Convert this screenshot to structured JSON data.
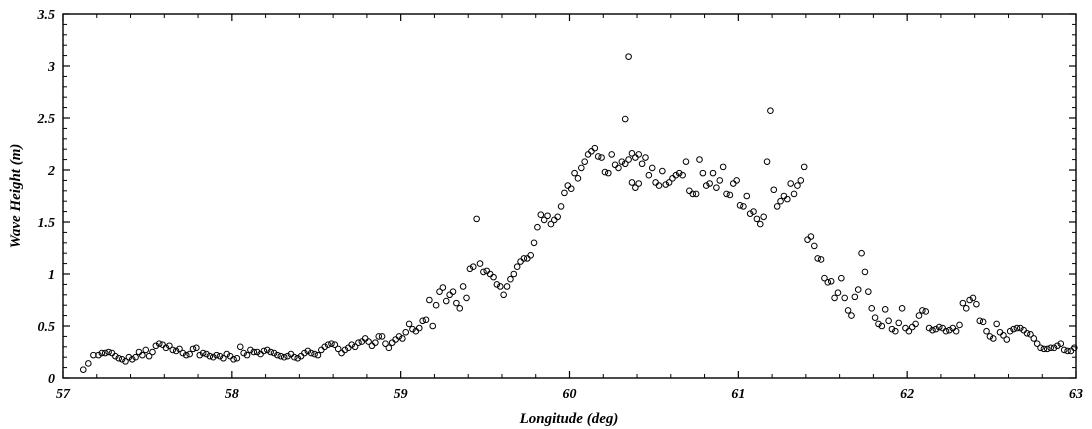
{
  "chart_data": {
    "type": "scatter",
    "xlabel": "Longitude (deg)",
    "ylabel": "Wave Height (m)",
    "xlim": [
      57,
      63
    ],
    "ylim": [
      0,
      3.5
    ],
    "x_ticks": [
      57,
      58,
      59,
      60,
      61,
      62,
      63
    ],
    "y_ticks": [
      0,
      0.5,
      1,
      1.5,
      2,
      2.5,
      3,
      3.5
    ],
    "x_tick_labels": [
      "57",
      "58",
      "59",
      "60",
      "61",
      "62",
      "63"
    ],
    "y_tick_labels": [
      "0",
      "0.5",
      "1",
      "1.5",
      "2",
      "2.5",
      "3",
      "3.5"
    ],
    "marker": "open-circle",
    "marker_color": "#000000",
    "grid": false,
    "series": [
      {
        "points": [
          [
            57.12,
            0.08
          ],
          [
            57.15,
            0.14
          ],
          [
            57.18,
            0.22
          ],
          [
            57.21,
            0.22
          ],
          [
            57.23,
            0.24
          ],
          [
            57.25,
            0.24
          ],
          [
            57.27,
            0.25
          ],
          [
            57.29,
            0.24
          ],
          [
            57.31,
            0.21
          ],
          [
            57.33,
            0.19
          ],
          [
            57.35,
            0.18
          ],
          [
            57.37,
            0.16
          ],
          [
            57.39,
            0.2
          ],
          [
            57.41,
            0.18
          ],
          [
            57.43,
            0.2
          ],
          [
            57.45,
            0.25
          ],
          [
            57.47,
            0.22
          ],
          [
            57.49,
            0.27
          ],
          [
            57.51,
            0.21
          ],
          [
            57.53,
            0.25
          ],
          [
            57.55,
            0.31
          ],
          [
            57.57,
            0.33
          ],
          [
            57.59,
            0.32
          ],
          [
            57.61,
            0.29
          ],
          [
            57.63,
            0.31
          ],
          [
            57.65,
            0.27
          ],
          [
            57.67,
            0.26
          ],
          [
            57.69,
            0.28
          ],
          [
            57.71,
            0.24
          ],
          [
            57.73,
            0.22
          ],
          [
            57.75,
            0.23
          ],
          [
            57.77,
            0.28
          ],
          [
            57.79,
            0.29
          ],
          [
            57.81,
            0.22
          ],
          [
            57.83,
            0.24
          ],
          [
            57.85,
            0.23
          ],
          [
            57.87,
            0.21
          ],
          [
            57.89,
            0.2
          ],
          [
            57.91,
            0.22
          ],
          [
            57.93,
            0.21
          ],
          [
            57.95,
            0.19
          ],
          [
            57.97,
            0.23
          ],
          [
            57.99,
            0.21
          ],
          [
            58.01,
            0.18
          ],
          [
            58.03,
            0.19
          ],
          [
            58.05,
            0.3
          ],
          [
            58.07,
            0.24
          ],
          [
            58.09,
            0.22
          ],
          [
            58.11,
            0.27
          ],
          [
            58.13,
            0.25
          ],
          [
            58.15,
            0.25
          ],
          [
            58.17,
            0.23
          ],
          [
            58.19,
            0.26
          ],
          [
            58.21,
            0.27
          ],
          [
            58.23,
            0.25
          ],
          [
            58.25,
            0.24
          ],
          [
            58.27,
            0.22
          ],
          [
            58.29,
            0.21
          ],
          [
            58.31,
            0.2
          ],
          [
            58.33,
            0.21
          ],
          [
            58.35,
            0.23
          ],
          [
            58.37,
            0.2
          ],
          [
            58.39,
            0.19
          ],
          [
            58.41,
            0.21
          ],
          [
            58.43,
            0.24
          ],
          [
            58.45,
            0.26
          ],
          [
            58.47,
            0.24
          ],
          [
            58.49,
            0.23
          ],
          [
            58.51,
            0.22
          ],
          [
            58.53,
            0.27
          ],
          [
            58.55,
            0.3
          ],
          [
            58.57,
            0.32
          ],
          [
            58.59,
            0.33
          ],
          [
            58.61,
            0.32
          ],
          [
            58.63,
            0.28
          ],
          [
            58.65,
            0.24
          ],
          [
            58.67,
            0.27
          ],
          [
            58.69,
            0.29
          ],
          [
            58.71,
            0.32
          ],
          [
            58.73,
            0.3
          ],
          [
            58.75,
            0.34
          ],
          [
            58.77,
            0.35
          ],
          [
            58.79,
            0.38
          ],
          [
            58.81,
            0.35
          ],
          [
            58.83,
            0.31
          ],
          [
            58.85,
            0.34
          ],
          [
            58.87,
            0.4
          ],
          [
            58.89,
            0.4
          ],
          [
            58.91,
            0.33
          ],
          [
            58.93,
            0.29
          ],
          [
            58.95,
            0.34
          ],
          [
            58.97,
            0.37
          ],
          [
            58.99,
            0.4
          ],
          [
            59.01,
            0.38
          ],
          [
            59.03,
            0.44
          ],
          [
            59.05,
            0.52
          ],
          [
            59.07,
            0.47
          ],
          [
            59.09,
            0.45
          ],
          [
            59.11,
            0.48
          ],
          [
            59.13,
            0.55
          ],
          [
            59.15,
            0.56
          ],
          [
            59.17,
            0.75
          ],
          [
            59.19,
            0.5
          ],
          [
            59.21,
            0.7
          ],
          [
            59.23,
            0.83
          ],
          [
            59.25,
            0.87
          ],
          [
            59.27,
            0.74
          ],
          [
            59.29,
            0.8
          ],
          [
            59.31,
            0.83
          ],
          [
            59.33,
            0.72
          ],
          [
            59.35,
            0.67
          ],
          [
            59.37,
            0.88
          ],
          [
            59.39,
            0.77
          ],
          [
            59.41,
            1.05
          ],
          [
            59.43,
            1.07
          ],
          [
            59.45,
            1.53
          ],
          [
            59.47,
            1.1
          ],
          [
            59.49,
            1.02
          ],
          [
            59.51,
            1.03
          ],
          [
            59.53,
            1.0
          ],
          [
            59.55,
            0.97
          ],
          [
            59.57,
            0.9
          ],
          [
            59.59,
            0.88
          ],
          [
            59.61,
            0.8
          ],
          [
            59.63,
            0.88
          ],
          [
            59.65,
            0.95
          ],
          [
            59.67,
            1.0
          ],
          [
            59.69,
            1.07
          ],
          [
            59.71,
            1.12
          ],
          [
            59.73,
            1.15
          ],
          [
            59.75,
            1.15
          ],
          [
            59.77,
            1.18
          ],
          [
            59.79,
            1.3
          ],
          [
            59.81,
            1.45
          ],
          [
            59.83,
            1.57
          ],
          [
            59.85,
            1.52
          ],
          [
            59.87,
            1.56
          ],
          [
            59.89,
            1.48
          ],
          [
            59.91,
            1.52
          ],
          [
            59.93,
            1.55
          ],
          [
            59.95,
            1.65
          ],
          [
            59.97,
            1.78
          ],
          [
            59.99,
            1.85
          ],
          [
            60.01,
            1.82
          ],
          [
            60.03,
            1.97
          ],
          [
            60.05,
            1.92
          ],
          [
            60.07,
            2.02
          ],
          [
            60.09,
            2.08
          ],
          [
            60.11,
            2.15
          ],
          [
            60.13,
            2.18
          ],
          [
            60.15,
            2.21
          ],
          [
            60.17,
            2.13
          ],
          [
            60.19,
            2.12
          ],
          [
            60.21,
            1.98
          ],
          [
            60.23,
            1.97
          ],
          [
            60.25,
            2.15
          ],
          [
            60.27,
            2.05
          ],
          [
            60.29,
            2.02
          ],
          [
            60.31,
            2.08
          ],
          [
            60.33,
            2.06
          ],
          [
            60.35,
            2.1
          ],
          [
            60.37,
            2.16
          ],
          [
            60.39,
            2.12
          ],
          [
            60.41,
            2.15
          ],
          [
            60.33,
            2.49
          ],
          [
            60.35,
            3.09
          ],
          [
            60.37,
            1.88
          ],
          [
            60.39,
            1.83
          ],
          [
            60.41,
            1.87
          ],
          [
            60.43,
            2.06
          ],
          [
            60.45,
            2.12
          ],
          [
            60.47,
            1.95
          ],
          [
            60.49,
            2.02
          ],
          [
            60.51,
            1.88
          ],
          [
            60.53,
            1.85
          ],
          [
            60.55,
            1.99
          ],
          [
            60.57,
            1.86
          ],
          [
            60.59,
            1.88
          ],
          [
            60.61,
            1.92
          ],
          [
            60.63,
            1.95
          ],
          [
            60.65,
            1.97
          ],
          [
            60.67,
            1.95
          ],
          [
            60.69,
            2.08
          ],
          [
            60.71,
            1.8
          ],
          [
            60.73,
            1.77
          ],
          [
            60.75,
            1.77
          ],
          [
            60.77,
            2.1
          ],
          [
            60.79,
            1.97
          ],
          [
            60.81,
            1.85
          ],
          [
            60.83,
            1.87
          ],
          [
            60.85,
            1.97
          ],
          [
            60.87,
            1.83
          ],
          [
            60.89,
            1.9
          ],
          [
            60.91,
            2.03
          ],
          [
            60.93,
            1.77
          ],
          [
            60.95,
            1.76
          ],
          [
            60.97,
            1.87
          ],
          [
            60.99,
            1.9
          ],
          [
            61.01,
            1.66
          ],
          [
            61.03,
            1.65
          ],
          [
            61.05,
            1.75
          ],
          [
            61.07,
            1.58
          ],
          [
            61.09,
            1.6
          ],
          [
            61.11,
            1.53
          ],
          [
            61.13,
            1.48
          ],
          [
            61.15,
            1.55
          ],
          [
            61.17,
            2.08
          ],
          [
            61.19,
            2.57
          ],
          [
            61.21,
            1.81
          ],
          [
            61.23,
            1.65
          ],
          [
            61.25,
            1.7
          ],
          [
            61.27,
            1.75
          ],
          [
            61.29,
            1.72
          ],
          [
            61.31,
            1.87
          ],
          [
            61.33,
            1.77
          ],
          [
            61.35,
            1.85
          ],
          [
            61.37,
            1.9
          ],
          [
            61.39,
            2.03
          ],
          [
            61.41,
            1.33
          ],
          [
            61.43,
            1.36
          ],
          [
            61.45,
            1.27
          ],
          [
            61.47,
            1.15
          ],
          [
            61.49,
            1.14
          ],
          [
            61.51,
            0.96
          ],
          [
            61.53,
            0.92
          ],
          [
            61.55,
            0.93
          ],
          [
            61.57,
            0.77
          ],
          [
            61.59,
            0.82
          ],
          [
            61.61,
            0.96
          ],
          [
            61.63,
            0.77
          ],
          [
            61.65,
            0.65
          ],
          [
            61.67,
            0.6
          ],
          [
            61.69,
            0.78
          ],
          [
            61.71,
            0.85
          ],
          [
            61.73,
            1.2
          ],
          [
            61.75,
            1.02
          ],
          [
            61.77,
            0.83
          ],
          [
            61.79,
            0.67
          ],
          [
            61.81,
            0.58
          ],
          [
            61.83,
            0.52
          ],
          [
            61.85,
            0.5
          ],
          [
            61.87,
            0.66
          ],
          [
            61.89,
            0.55
          ],
          [
            61.91,
            0.47
          ],
          [
            61.93,
            0.45
          ],
          [
            61.95,
            0.53
          ],
          [
            61.97,
            0.67
          ],
          [
            61.99,
            0.48
          ],
          [
            62.01,
            0.45
          ],
          [
            62.03,
            0.49
          ],
          [
            62.05,
            0.52
          ],
          [
            62.07,
            0.6
          ],
          [
            62.09,
            0.65
          ],
          [
            62.11,
            0.64
          ],
          [
            62.13,
            0.48
          ],
          [
            62.15,
            0.46
          ],
          [
            62.17,
            0.47
          ],
          [
            62.19,
            0.49
          ],
          [
            62.21,
            0.48
          ],
          [
            62.23,
            0.45
          ],
          [
            62.25,
            0.46
          ],
          [
            62.27,
            0.48
          ],
          [
            62.29,
            0.45
          ],
          [
            62.31,
            0.51
          ],
          [
            62.33,
            0.72
          ],
          [
            62.35,
            0.67
          ],
          [
            62.37,
            0.75
          ],
          [
            62.39,
            0.77
          ],
          [
            62.41,
            0.71
          ],
          [
            62.43,
            0.55
          ],
          [
            62.45,
            0.54
          ],
          [
            62.47,
            0.45
          ],
          [
            62.49,
            0.4
          ],
          [
            62.51,
            0.38
          ],
          [
            62.53,
            0.52
          ],
          [
            62.55,
            0.44
          ],
          [
            62.57,
            0.41
          ],
          [
            62.59,
            0.37
          ],
          [
            62.61,
            0.45
          ],
          [
            62.63,
            0.47
          ],
          [
            62.65,
            0.48
          ],
          [
            62.67,
            0.48
          ],
          [
            62.69,
            0.46
          ],
          [
            62.71,
            0.43
          ],
          [
            62.73,
            0.42
          ],
          [
            62.75,
            0.38
          ],
          [
            62.77,
            0.33
          ],
          [
            62.79,
            0.29
          ],
          [
            62.81,
            0.28
          ],
          [
            62.83,
            0.28
          ],
          [
            62.85,
            0.29
          ],
          [
            62.87,
            0.29
          ],
          [
            62.89,
            0.31
          ],
          [
            62.91,
            0.33
          ],
          [
            62.93,
            0.27
          ],
          [
            62.95,
            0.26
          ],
          [
            62.97,
            0.26
          ],
          [
            62.99,
            0.29
          ],
          [
            63.01,
            0.28
          ],
          [
            63.03,
            0.22
          ],
          [
            63.05,
            0.3
          ],
          [
            63.07,
            0.31
          ],
          [
            63.09,
            0.32
          ],
          [
            63.11,
            0.3
          ],
          [
            63.13,
            0.33
          ],
          [
            63.15,
            0.32
          ],
          [
            63.17,
            0.31
          ],
          [
            63.19,
            0.32
          ],
          [
            63.21,
            0.31
          ],
          [
            63.23,
            0.29
          ]
        ]
      }
    ]
  }
}
